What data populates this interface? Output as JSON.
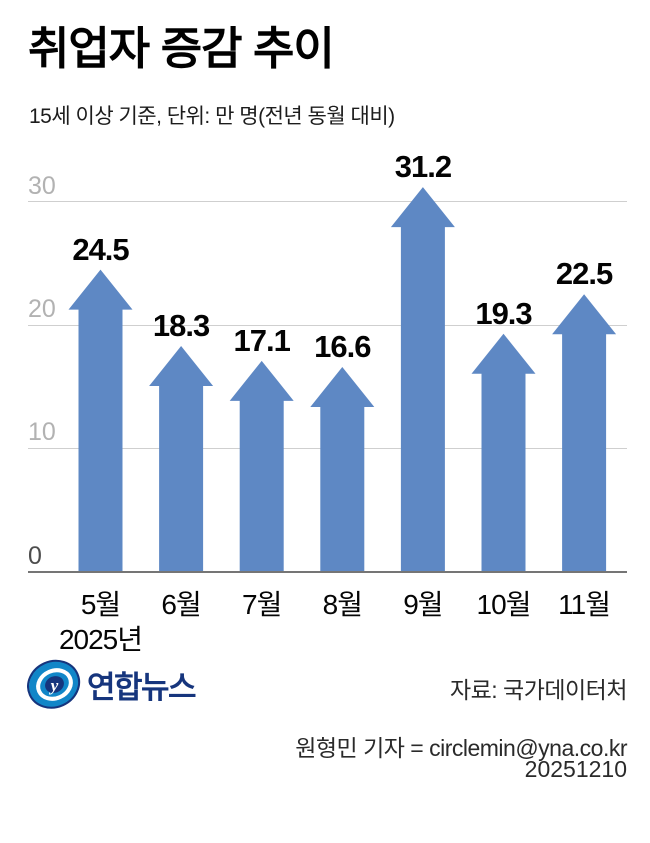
{
  "title": "취업자 증감 추이",
  "subtitle": "15세 이상 기준, 단위: 만 명(전년 동월 대비)",
  "chart_data": {
    "type": "bar",
    "bar_style": "up-arrow",
    "categories": [
      "5월",
      "6월",
      "7월",
      "8월",
      "9월",
      "10월",
      "11월"
    ],
    "values": [
      24.5,
      18.3,
      17.1,
      16.6,
      31.2,
      19.3,
      22.5
    ],
    "x_axis_year_label": "2025년",
    "title": "취업자 증감 추이",
    "xlabel": "",
    "ylabel": "만 명",
    "yticks": [
      0,
      10,
      20,
      30
    ],
    "ylim": [
      0,
      33
    ],
    "grid": true,
    "legend": "none",
    "bar_color": "#5e88c4",
    "gridline_color": "#cfcfcf",
    "axis_line_color": "#757575",
    "tick_label_color": "#b2b2b2",
    "zero_tick_label_color": "#4d4d4d"
  },
  "footer": {
    "logo_text": "연합뉴스",
    "logo_icon": "yonhap-globe-icon",
    "logo_blue": "#1186c8",
    "logo_navy": "#16357d",
    "source": "자료: 국가데이터처",
    "credit": "원형민 기자 = circlemin@yna.co.kr",
    "date": "20251210"
  }
}
